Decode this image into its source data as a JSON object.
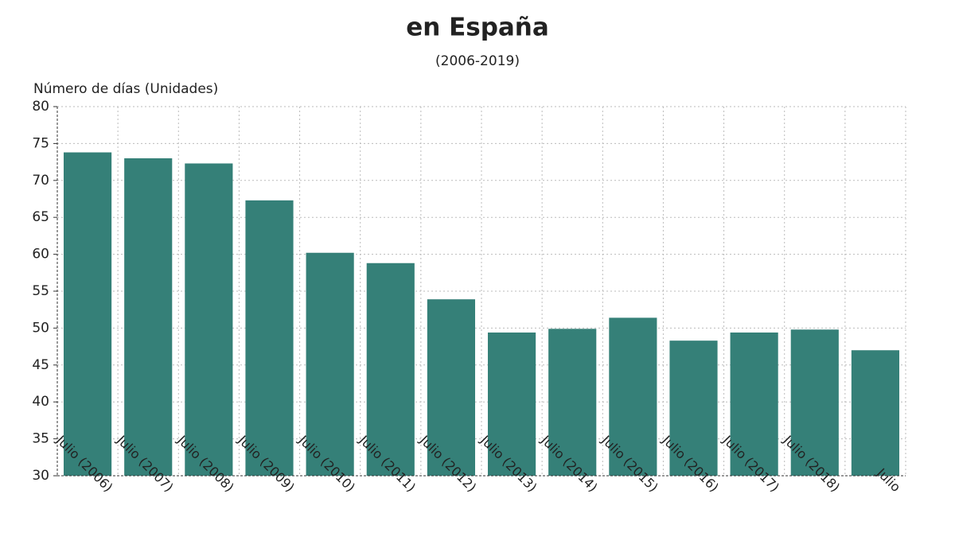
{
  "chart_data": {
    "type": "bar",
    "title": "en España",
    "subtitle": "(2006-2019)",
    "y_label": "Número de días (Unidades)",
    "categories": [
      "Julio (2006)",
      "Julio (2007)",
      "Julio (2008)",
      "Julio (2009)",
      "Julio (2010)",
      "Julio (2011)",
      "Julio (2012)",
      "Julio (2013)",
      "Julio (2014)",
      "Julio (2015)",
      "Julio (2016)",
      "Julio (2017)",
      "Julio (2018)",
      "Julio"
    ],
    "values": [
      73.8,
      73.0,
      72.3,
      67.3,
      60.2,
      58.8,
      53.9,
      49.4,
      49.9,
      51.4,
      48.3,
      49.4,
      49.8,
      47.0
    ],
    "color": "#358078",
    "ylim": [
      30,
      80
    ],
    "yticks": [
      30,
      35,
      40,
      45,
      50,
      55,
      60,
      65,
      70,
      75,
      80
    ],
    "grid": true
  }
}
